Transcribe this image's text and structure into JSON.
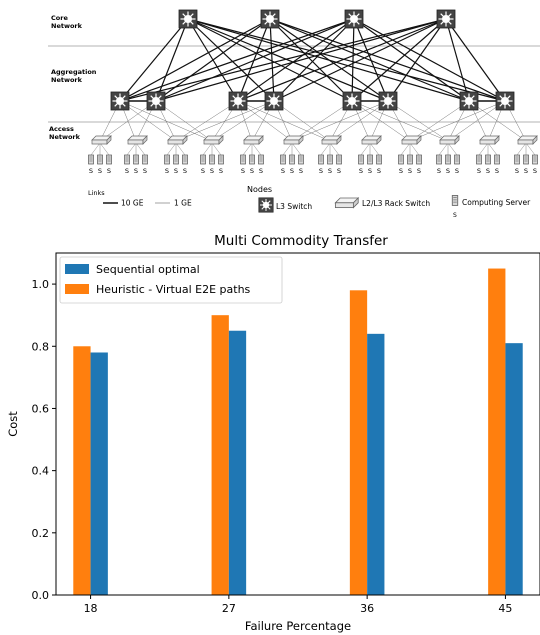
{
  "topology": {
    "layers": [
      {
        "line1": "Core",
        "line2": "Network"
      },
      {
        "line1": "Aggregation",
        "line2": "Network"
      },
      {
        "line1": "Access",
        "line2": "Network"
      }
    ],
    "server_label": "S",
    "legend": {
      "links_title": "Links",
      "link_10ge": "10 GE",
      "link_1ge": "1 GE",
      "nodes_title": "Nodes",
      "l3_switch": "L3 Switch",
      "rack_switch": "L2/L3 Rack Switch",
      "server": "Computing Server",
      "server_icon_label": "S"
    }
  },
  "chart_data": {
    "type": "bar",
    "title": "Multi Commodity Transfer",
    "xlabel": "Failure Percentage",
    "ylabel": "Cost",
    "categories": [
      "18",
      "27",
      "36",
      "45"
    ],
    "series": [
      {
        "name": "Heuristic - Virtual E2E paths",
        "color": "#ff7f0e",
        "values": [
          0.8,
          0.9,
          0.98,
          1.05
        ]
      },
      {
        "name": "Sequential optimal",
        "color": "#1f77b4",
        "values": [
          0.78,
          0.85,
          0.84,
          0.81
        ]
      }
    ],
    "ylim": [
      0,
      1.1
    ],
    "yticks": [
      "0.0",
      "0.2",
      "0.4",
      "0.6",
      "0.8",
      "1.0"
    ],
    "legend_order": [
      1,
      0
    ],
    "legend_position": "top-left",
    "grid": false
  }
}
